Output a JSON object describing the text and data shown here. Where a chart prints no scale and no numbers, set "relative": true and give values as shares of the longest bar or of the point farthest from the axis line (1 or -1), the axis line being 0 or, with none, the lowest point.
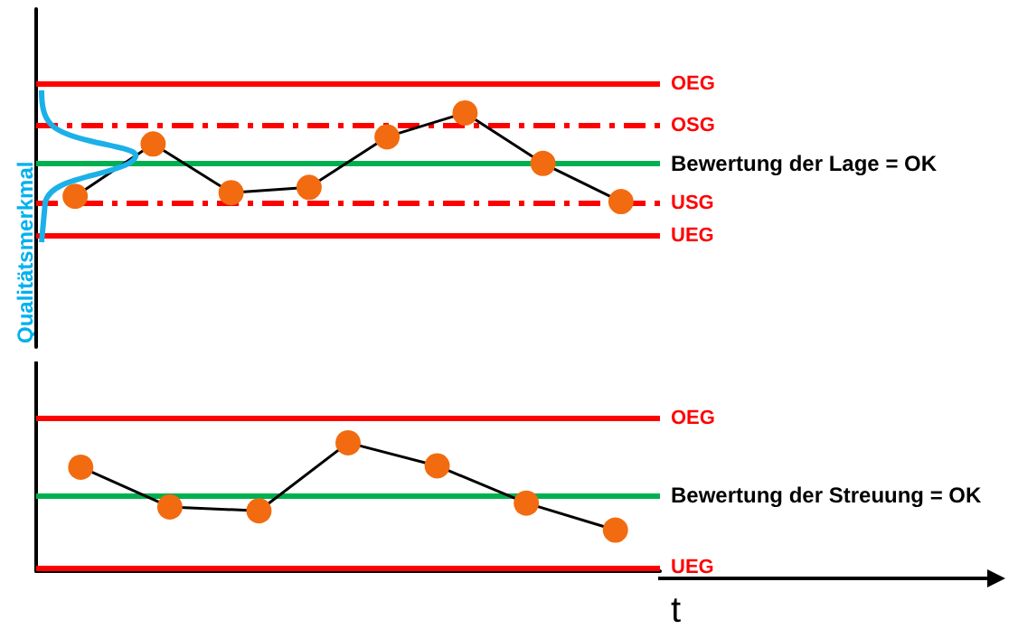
{
  "chart_data": [
    {
      "type": "line",
      "relative": true,
      "ylabel": "Qualitätsmerkmal",
      "categories": [
        null,
        null,
        null,
        null,
        null,
        null,
        null,
        null
      ],
      "series": [
        {
          "color": "#000000",
          "values": [
            0.06,
            0.65,
            0.1,
            0.16,
            0.73,
            1.0,
            0.43,
            0.0
          ]
        }
      ],
      "ref_lines": [
        {
          "axis": "y",
          "value": 1.33,
          "label": "OEG",
          "color": "#ff0000",
          "line_style": "solid"
        },
        {
          "axis": "y",
          "value": 0.86,
          "label": "OSG",
          "color": "#ff0000",
          "line_style": "dashed"
        },
        {
          "axis": "y",
          "value": 0.43,
          "label": "Bewertung der Lage = OK",
          "color": "#00b050",
          "line_style": "solid"
        },
        {
          "axis": "y",
          "value": -0.02,
          "label": "USG",
          "color": "#ff0000",
          "line_style": "dashed"
        },
        {
          "axis": "y",
          "value": -0.39,
          "label": "UEG",
          "color": "#ff0000",
          "line_style": "solid"
        }
      ],
      "marker": "circle",
      "line_style": "solid",
      "grid": false
    },
    {
      "type": "line",
      "relative": true,
      "xlabel": "t",
      "categories": [
        null,
        null,
        null,
        null,
        null,
        null,
        null
      ],
      "series": [
        {
          "color": "#000000",
          "values": [
            0.81,
            0.5,
            0.47,
            1.0,
            0.82,
            0.53,
            0.32
          ]
        }
      ],
      "ref_lines": [
        {
          "axis": "y",
          "value": 1.19,
          "label": "OEG",
          "color": "#ff0000",
          "line_style": "solid"
        },
        {
          "axis": "y",
          "value": 0.59,
          "label": "Bewertung der Streuung = OK",
          "color": "#00b050",
          "line_style": "solid"
        },
        {
          "axis": "y",
          "value": 0.03,
          "label": "UEG",
          "color": "#ff0000",
          "line_style": "solid"
        }
      ],
      "marker": "circle",
      "line_style": "solid",
      "grid": false
    }
  ]
}
